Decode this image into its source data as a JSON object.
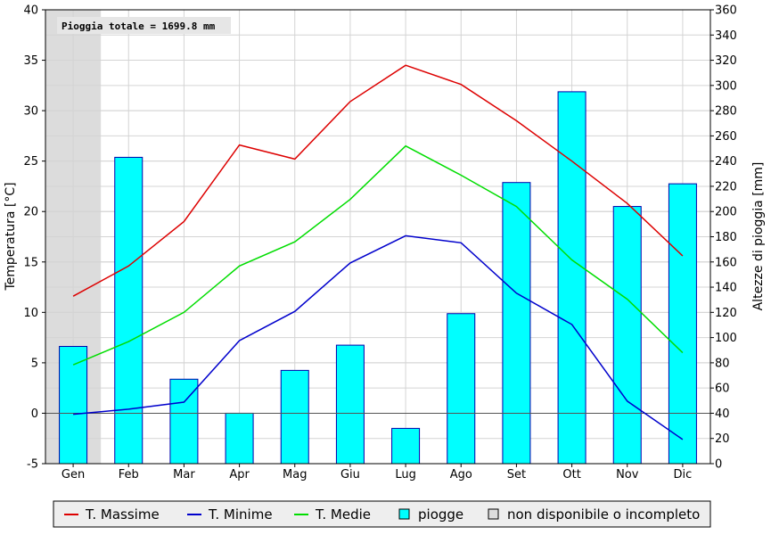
{
  "chart_data": {
    "type": "bar",
    "categories": [
      "Gen",
      "Feb",
      "Mar",
      "Apr",
      "Mag",
      "Giu",
      "Lug",
      "Ago",
      "Set",
      "Ott",
      "Nov",
      "Dic"
    ],
    "ylabel": "Temperatura [°C]",
    "y2label": "Altezze di pioggia [mm]",
    "ylim": [
      -5,
      40
    ],
    "y2lim": [
      0,
      360
    ],
    "yticks": [
      -5,
      0,
      5,
      10,
      15,
      20,
      25,
      30,
      35,
      40
    ],
    "y2ticks": [
      0,
      20,
      40,
      60,
      80,
      100,
      120,
      140,
      160,
      180,
      200,
      220,
      240,
      260,
      280,
      300,
      320,
      340,
      360
    ],
    "grid": true,
    "annotation": "Pioggia totale = 1699.8 mm",
    "unavailable_months": [
      "Gen"
    ],
    "series": [
      {
        "name": "T. Massime",
        "kind": "line",
        "axis": "left",
        "color": "#dd0000",
        "values": [
          11.6,
          14.6,
          19.0,
          26.6,
          25.2,
          30.9,
          34.5,
          32.6,
          29.0,
          25.0,
          20.8,
          15.6
        ]
      },
      {
        "name": "T. Minime",
        "kind": "line",
        "axis": "left",
        "color": "#0000cc",
        "values": [
          -0.1,
          0.4,
          1.1,
          7.2,
          10.1,
          14.9,
          17.6,
          16.9,
          11.9,
          8.8,
          1.2,
          -2.6
        ]
      },
      {
        "name": "T. Medie",
        "kind": "line",
        "axis": "left",
        "color": "#00dd00",
        "values": [
          4.8,
          7.1,
          10.0,
          14.6,
          17.0,
          21.2,
          26.5,
          23.6,
          20.5,
          15.2,
          11.3,
          6.0
        ]
      },
      {
        "name": "piogge",
        "kind": "bar",
        "axis": "right",
        "color": "#00ffff",
        "edge": "#0000aa",
        "values": [
          93,
          243,
          67,
          40,
          74,
          94,
          28,
          119,
          223,
          295,
          204,
          222
        ]
      }
    ],
    "legend": {
      "position": "bottom",
      "items": [
        {
          "label": "T. Massime",
          "kind": "line",
          "color": "#dd0000"
        },
        {
          "label": "T. Minime",
          "kind": "line",
          "color": "#0000cc"
        },
        {
          "label": "T. Medie",
          "kind": "line",
          "color": "#00dd00"
        },
        {
          "label": "piogge",
          "kind": "box",
          "color": "#00ffff"
        },
        {
          "label": "non disponibile o incompleto",
          "kind": "box",
          "color": "#dcdcdc"
        }
      ]
    }
  }
}
